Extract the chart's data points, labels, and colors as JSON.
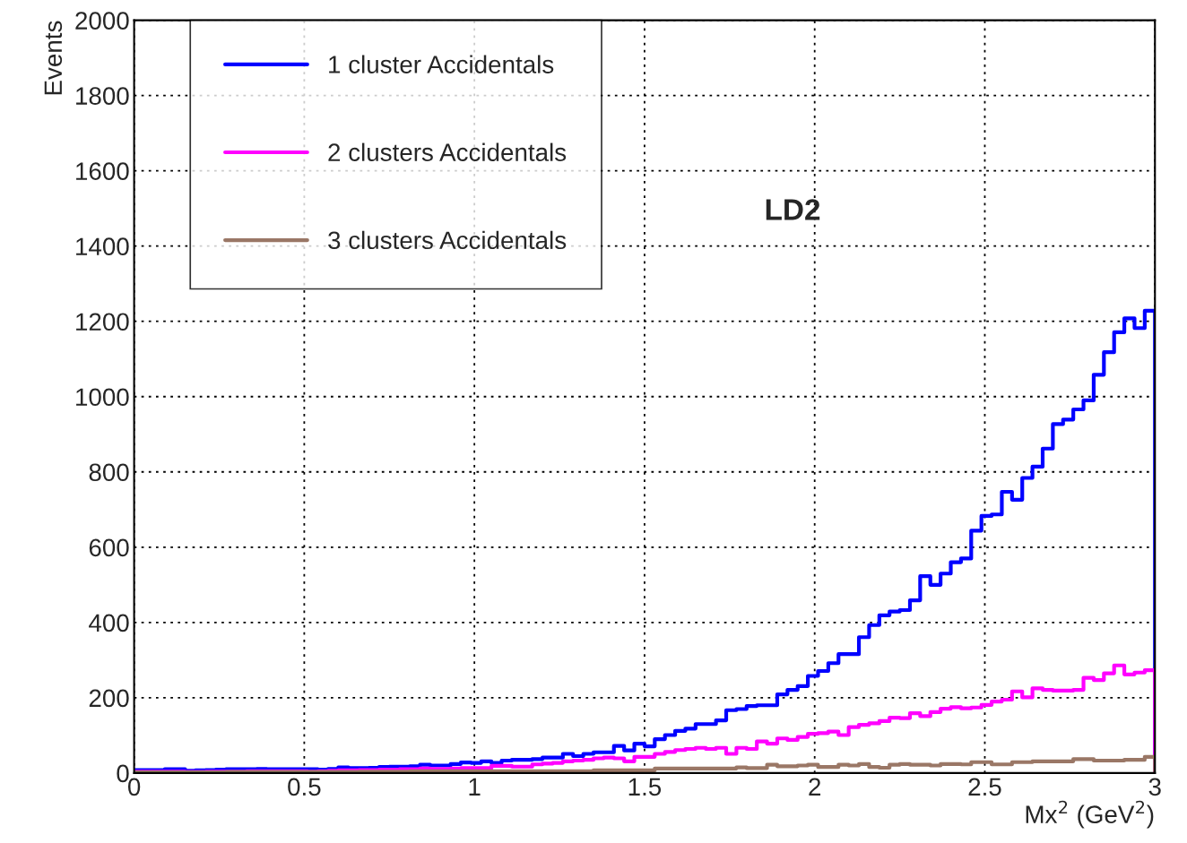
{
  "chart_data": {
    "type": "histogram",
    "xlabel": "Mx$^{2}$ (GeV$^{2}$)",
    "ylabel": "Events",
    "annotations": [
      "LD2"
    ],
    "bins": [
      0,
      0.03,
      0.06,
      0.09,
      0.12,
      0.15,
      0.18,
      0.21,
      0.24,
      0.27,
      0.3,
      0.33,
      0.36,
      0.39,
      0.42,
      0.45,
      0.48,
      0.51,
      0.54,
      0.57,
      0.6,
      0.63,
      0.66,
      0.69,
      0.72,
      0.75,
      0.78,
      0.81,
      0.84,
      0.87,
      0.9,
      0.93,
      0.96,
      0.99,
      1.02,
      1.05,
      1.08,
      1.11,
      1.14,
      1.17,
      1.2,
      1.23,
      1.26,
      1.29,
      1.32,
      1.35,
      1.38,
      1.41,
      1.44,
      1.47,
      1.5,
      1.53,
      1.56,
      1.59,
      1.62,
      1.65,
      1.68,
      1.71,
      1.74,
      1.77,
      1.8,
      1.83,
      1.86,
      1.89,
      1.92,
      1.95,
      1.98,
      2.01,
      2.04,
      2.07,
      2.1,
      2.13,
      2.16,
      2.19,
      2.22,
      2.25,
      2.28,
      2.31,
      2.34,
      2.37,
      2.4,
      2.43,
      2.46,
      2.49,
      2.52,
      2.55,
      2.58,
      2.61,
      2.64,
      2.67,
      2.7,
      2.73,
      2.76,
      2.79,
      2.82,
      2.85,
      2.88,
      2.91,
      2.94,
      2.97,
      3
    ],
    "series": [
      {
        "name": "1 cluster Accidentals",
        "color": "#0000ff",
        "values": [
          8,
          8,
          8,
          10,
          10,
          6,
          7,
          8,
          9,
          10,
          10,
          10,
          11,
          10,
          10,
          10,
          10,
          10,
          9,
          11,
          15,
          13,
          13,
          14,
          16,
          17,
          17,
          18,
          22,
          20,
          20,
          24,
          28,
          27,
          31,
          27,
          33,
          35,
          35,
          37,
          41,
          41,
          51,
          45,
          51,
          55,
          55,
          72,
          60,
          78,
          71,
          90,
          101,
          112,
          118,
          130,
          130,
          140,
          167,
          170,
          178,
          180,
          180,
          209,
          221,
          231,
          258,
          271,
          292,
          316,
          316,
          361,
          393,
          419,
          429,
          433,
          459,
          523,
          500,
          530,
          560,
          570,
          644,
          683,
          687,
          747,
          726,
          784,
          814,
          862,
          927,
          939,
          966,
          990,
          1058,
          1118,
          1171,
          1208,
          1182,
          1228
        ]
      },
      {
        "name": "2 clusters Accidentals",
        "color": "#ff00ff",
        "values": [
          4,
          4,
          4,
          4,
          4,
          3,
          3,
          4,
          4,
          4,
          4,
          5,
          5,
          5,
          5,
          5,
          5,
          4,
          5,
          6,
          7,
          7,
          8,
          8,
          9,
          9,
          10,
          10,
          12,
          11,
          11,
          12,
          13,
          13,
          13,
          19,
          19,
          17,
          17,
          23,
          25,
          27,
          31,
          33,
          35,
          39,
          41,
          39,
          31,
          43,
          43,
          51,
          56,
          61,
          64,
          67,
          64,
          67,
          51,
          67,
          64,
          84,
          78,
          92,
          88,
          96,
          104,
          106,
          110,
          101,
          122,
          128,
          132,
          138,
          147,
          146,
          159,
          151,
          162,
          171,
          175,
          172,
          174,
          181,
          190,
          195,
          217,
          201,
          225,
          221,
          219,
          219,
          221,
          253,
          247,
          265,
          286,
          262,
          267,
          273
        ]
      },
      {
        "name": "3 clusters Accidentals",
        "color": "#9a7766",
        "values": [
          2,
          2,
          2,
          2,
          2,
          2,
          2,
          2,
          2,
          3,
          3,
          3,
          3,
          3,
          3,
          3,
          3,
          3,
          3,
          3,
          3,
          3,
          4,
          4,
          4,
          4,
          4,
          5,
          5,
          5,
          5,
          5,
          5,
          5,
          5,
          5,
          5,
          5,
          5,
          5,
          5,
          5,
          5,
          5,
          5,
          7,
          7,
          7,
          7,
          7,
          7,
          12,
          12,
          12,
          12,
          12,
          12,
          12,
          12,
          15,
          13,
          13,
          22,
          18,
          18,
          20,
          22,
          16,
          16,
          22,
          20,
          24,
          16,
          14,
          22,
          24,
          22,
          22,
          20,
          24,
          24,
          23,
          29,
          29,
          23,
          23,
          29,
          29,
          31,
          31,
          31,
          31,
          37,
          37,
          33,
          33,
          33,
          35,
          35,
          43
        ]
      }
    ],
    "xlim": [
      0,
      3
    ],
    "xticks": [
      0,
      0.5,
      1,
      1.5,
      2,
      2.5,
      3
    ],
    "ylim": [
      0,
      2000
    ],
    "yticks": [
      0,
      200,
      400,
      600,
      800,
      1000,
      1200,
      1400,
      1600,
      1800,
      2000
    ],
    "grid": true,
    "legend": "top left",
    "line_style": "solid"
  }
}
